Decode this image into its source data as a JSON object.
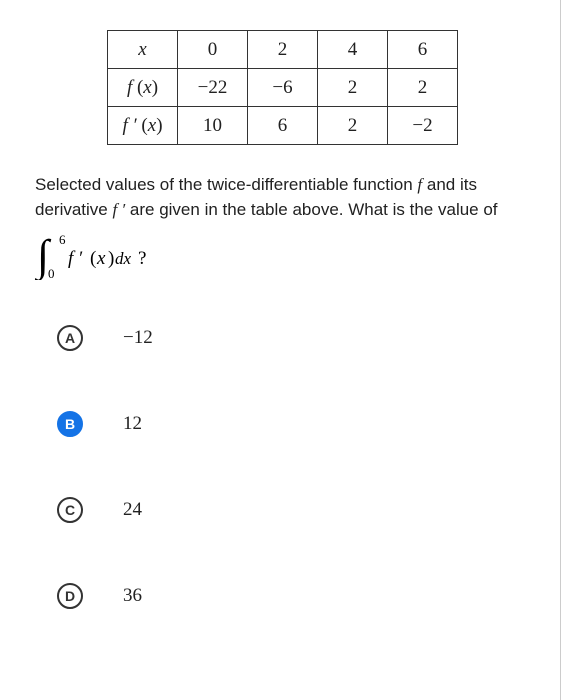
{
  "table": {
    "headers": [
      "x",
      "0",
      "2",
      "4",
      "6"
    ],
    "rows": [
      {
        "label_html": "<span class='func'>f</span> <span class='paren'>(</span><span class='func'>x</span><span class='paren'>)</span>",
        "values": [
          "−22",
          "−6",
          "2",
          "2"
        ]
      },
      {
        "label_html": "<span class='func'>f ′</span> <span class='paren'>(</span><span class='func'>x</span><span class='paren'>)</span>",
        "values": [
          "10",
          "6",
          "2",
          "−2"
        ]
      }
    ]
  },
  "question": {
    "line1": "Selected values of the twice-differentiable function ",
    "f": "f",
    "line2": " and its derivative ",
    "fprime": "f ′",
    "line3": " are given in the table above. What is the value of",
    "integral_question_mark": " ?"
  },
  "options": [
    {
      "letter": "A",
      "value": "−12",
      "selected": false
    },
    {
      "letter": "B",
      "value": "12",
      "selected": true
    },
    {
      "letter": "C",
      "value": "24",
      "selected": false
    },
    {
      "letter": "D",
      "value": "36",
      "selected": false
    }
  ],
  "colors": {
    "selected_bg": "#1473e6",
    "border": "#333333",
    "text": "#212121"
  }
}
